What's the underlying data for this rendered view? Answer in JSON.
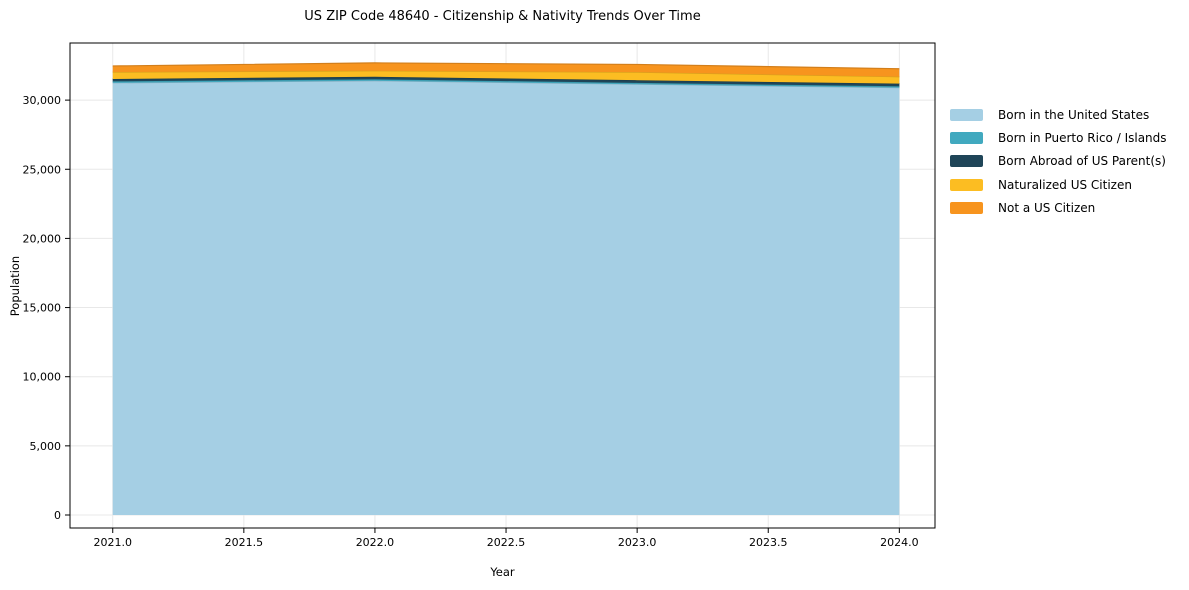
{
  "figure": {
    "background": "#ffffff",
    "text_color": "#000000",
    "grid_color": "#e8e8e8",
    "spine_color": "#000000"
  },
  "chart": {
    "title": "US ZIP Code 48640 - Citizenship & Nativity Trends Over Time",
    "xlabel": "Year",
    "ylabel": "Population"
  },
  "chart_data": {
    "type": "area",
    "stacked": true,
    "title": "US ZIP Code 48640 - Citizenship & Nativity Trends Over Time",
    "xlabel": "Year",
    "ylabel": "Population",
    "x": [
      2021,
      2022,
      2023,
      2024
    ],
    "series": [
      {
        "name": "Born in the United States",
        "color": "#a5cfe4",
        "values": [
          31250,
          31400,
          31150,
          30900
        ]
      },
      {
        "name": "Born in Puerto Rico / Islands",
        "color": "#41a9bf",
        "values": [
          110,
          110,
          100,
          100
        ]
      },
      {
        "name": "Born Abroad of US Parent(s)",
        "color": "#1f4558",
        "values": [
          170,
          180,
          190,
          190
        ]
      },
      {
        "name": "Naturalized US Citizen",
        "color": "#fcbd22",
        "values": [
          500,
          430,
          580,
          500
        ]
      },
      {
        "name": "Not a US Citizen",
        "color": "#f7941e",
        "values": [
          440,
          570,
          560,
          580
        ]
      }
    ],
    "totals": [
      32470,
      32690,
      32580,
      32270
    ],
    "xlim": [
      2020.837,
      2024.136
    ],
    "ylim": [
      -940,
      34130
    ],
    "xticks": {
      "values": [
        2021.0,
        2021.5,
        2022.0,
        2022.5,
        2023.0,
        2023.5,
        2024.0
      ],
      "labels": [
        "2021.0",
        "2021.5",
        "2022.0",
        "2022.5",
        "2023.0",
        "2023.5",
        "2024.0"
      ]
    },
    "yticks": {
      "values": [
        0,
        5000,
        10000,
        15000,
        20000,
        25000,
        30000
      ],
      "labels": [
        "0",
        "5,000",
        "10,000",
        "15,000",
        "20,000",
        "25,000",
        "30,000"
      ]
    },
    "grid": true,
    "legend_position": "right-outside"
  }
}
